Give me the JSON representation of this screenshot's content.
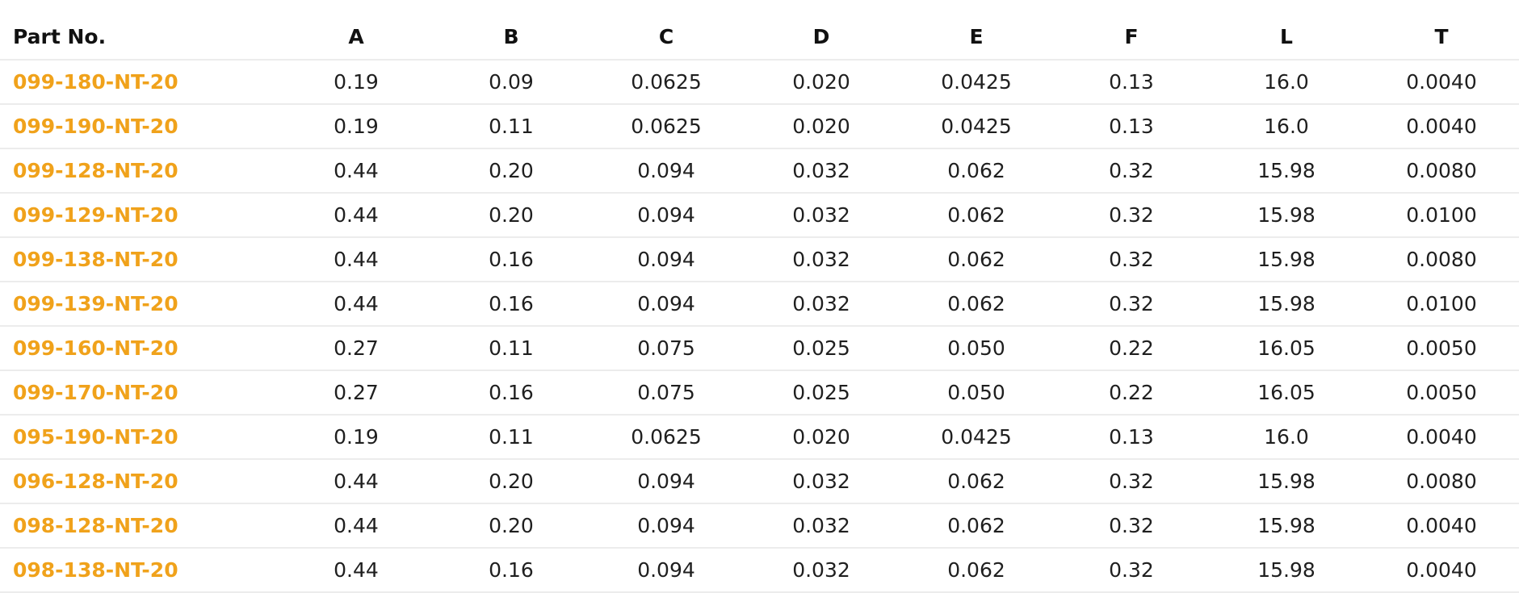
{
  "colors": {
    "link": "#f0a21b",
    "text": "#1f1f1f",
    "divider": "#ececec"
  },
  "table": {
    "headers": [
      "Part No.",
      "A",
      "B",
      "C",
      "D",
      "E",
      "F",
      "L",
      "T"
    ],
    "rows": [
      [
        "099-180-NT-20",
        "0.19",
        "0.09",
        "0.0625",
        "0.020",
        "0.0425",
        "0.13",
        "16.0",
        "0.0040"
      ],
      [
        "099-190-NT-20",
        "0.19",
        "0.11",
        "0.0625",
        "0.020",
        "0.0425",
        "0.13",
        "16.0",
        "0.0040"
      ],
      [
        "099-128-NT-20",
        "0.44",
        "0.20",
        "0.094",
        "0.032",
        "0.062",
        "0.32",
        "15.98",
        "0.0080"
      ],
      [
        "099-129-NT-20",
        "0.44",
        "0.20",
        "0.094",
        "0.032",
        "0.062",
        "0.32",
        "15.98",
        "0.0100"
      ],
      [
        "099-138-NT-20",
        "0.44",
        "0.16",
        "0.094",
        "0.032",
        "0.062",
        "0.32",
        "15.98",
        "0.0080"
      ],
      [
        "099-139-NT-20",
        "0.44",
        "0.16",
        "0.094",
        "0.032",
        "0.062",
        "0.32",
        "15.98",
        "0.0100"
      ],
      [
        "099-160-NT-20",
        "0.27",
        "0.11",
        "0.075",
        "0.025",
        "0.050",
        "0.22",
        "16.05",
        "0.0050"
      ],
      [
        "099-170-NT-20",
        "0.27",
        "0.16",
        "0.075",
        "0.025",
        "0.050",
        "0.22",
        "16.05",
        "0.0050"
      ],
      [
        "095-190-NT-20",
        "0.19",
        "0.11",
        "0.0625",
        "0.020",
        "0.0425",
        "0.13",
        "16.0",
        "0.0040"
      ],
      [
        "096-128-NT-20",
        "0.44",
        "0.20",
        "0.094",
        "0.032",
        "0.062",
        "0.32",
        "15.98",
        "0.0080"
      ],
      [
        "098-128-NT-20",
        "0.44",
        "0.20",
        "0.094",
        "0.032",
        "0.062",
        "0.32",
        "15.98",
        "0.0040"
      ],
      [
        "098-138-NT-20",
        "0.44",
        "0.16",
        "0.094",
        "0.032",
        "0.062",
        "0.32",
        "15.98",
        "0.0040"
      ]
    ]
  }
}
